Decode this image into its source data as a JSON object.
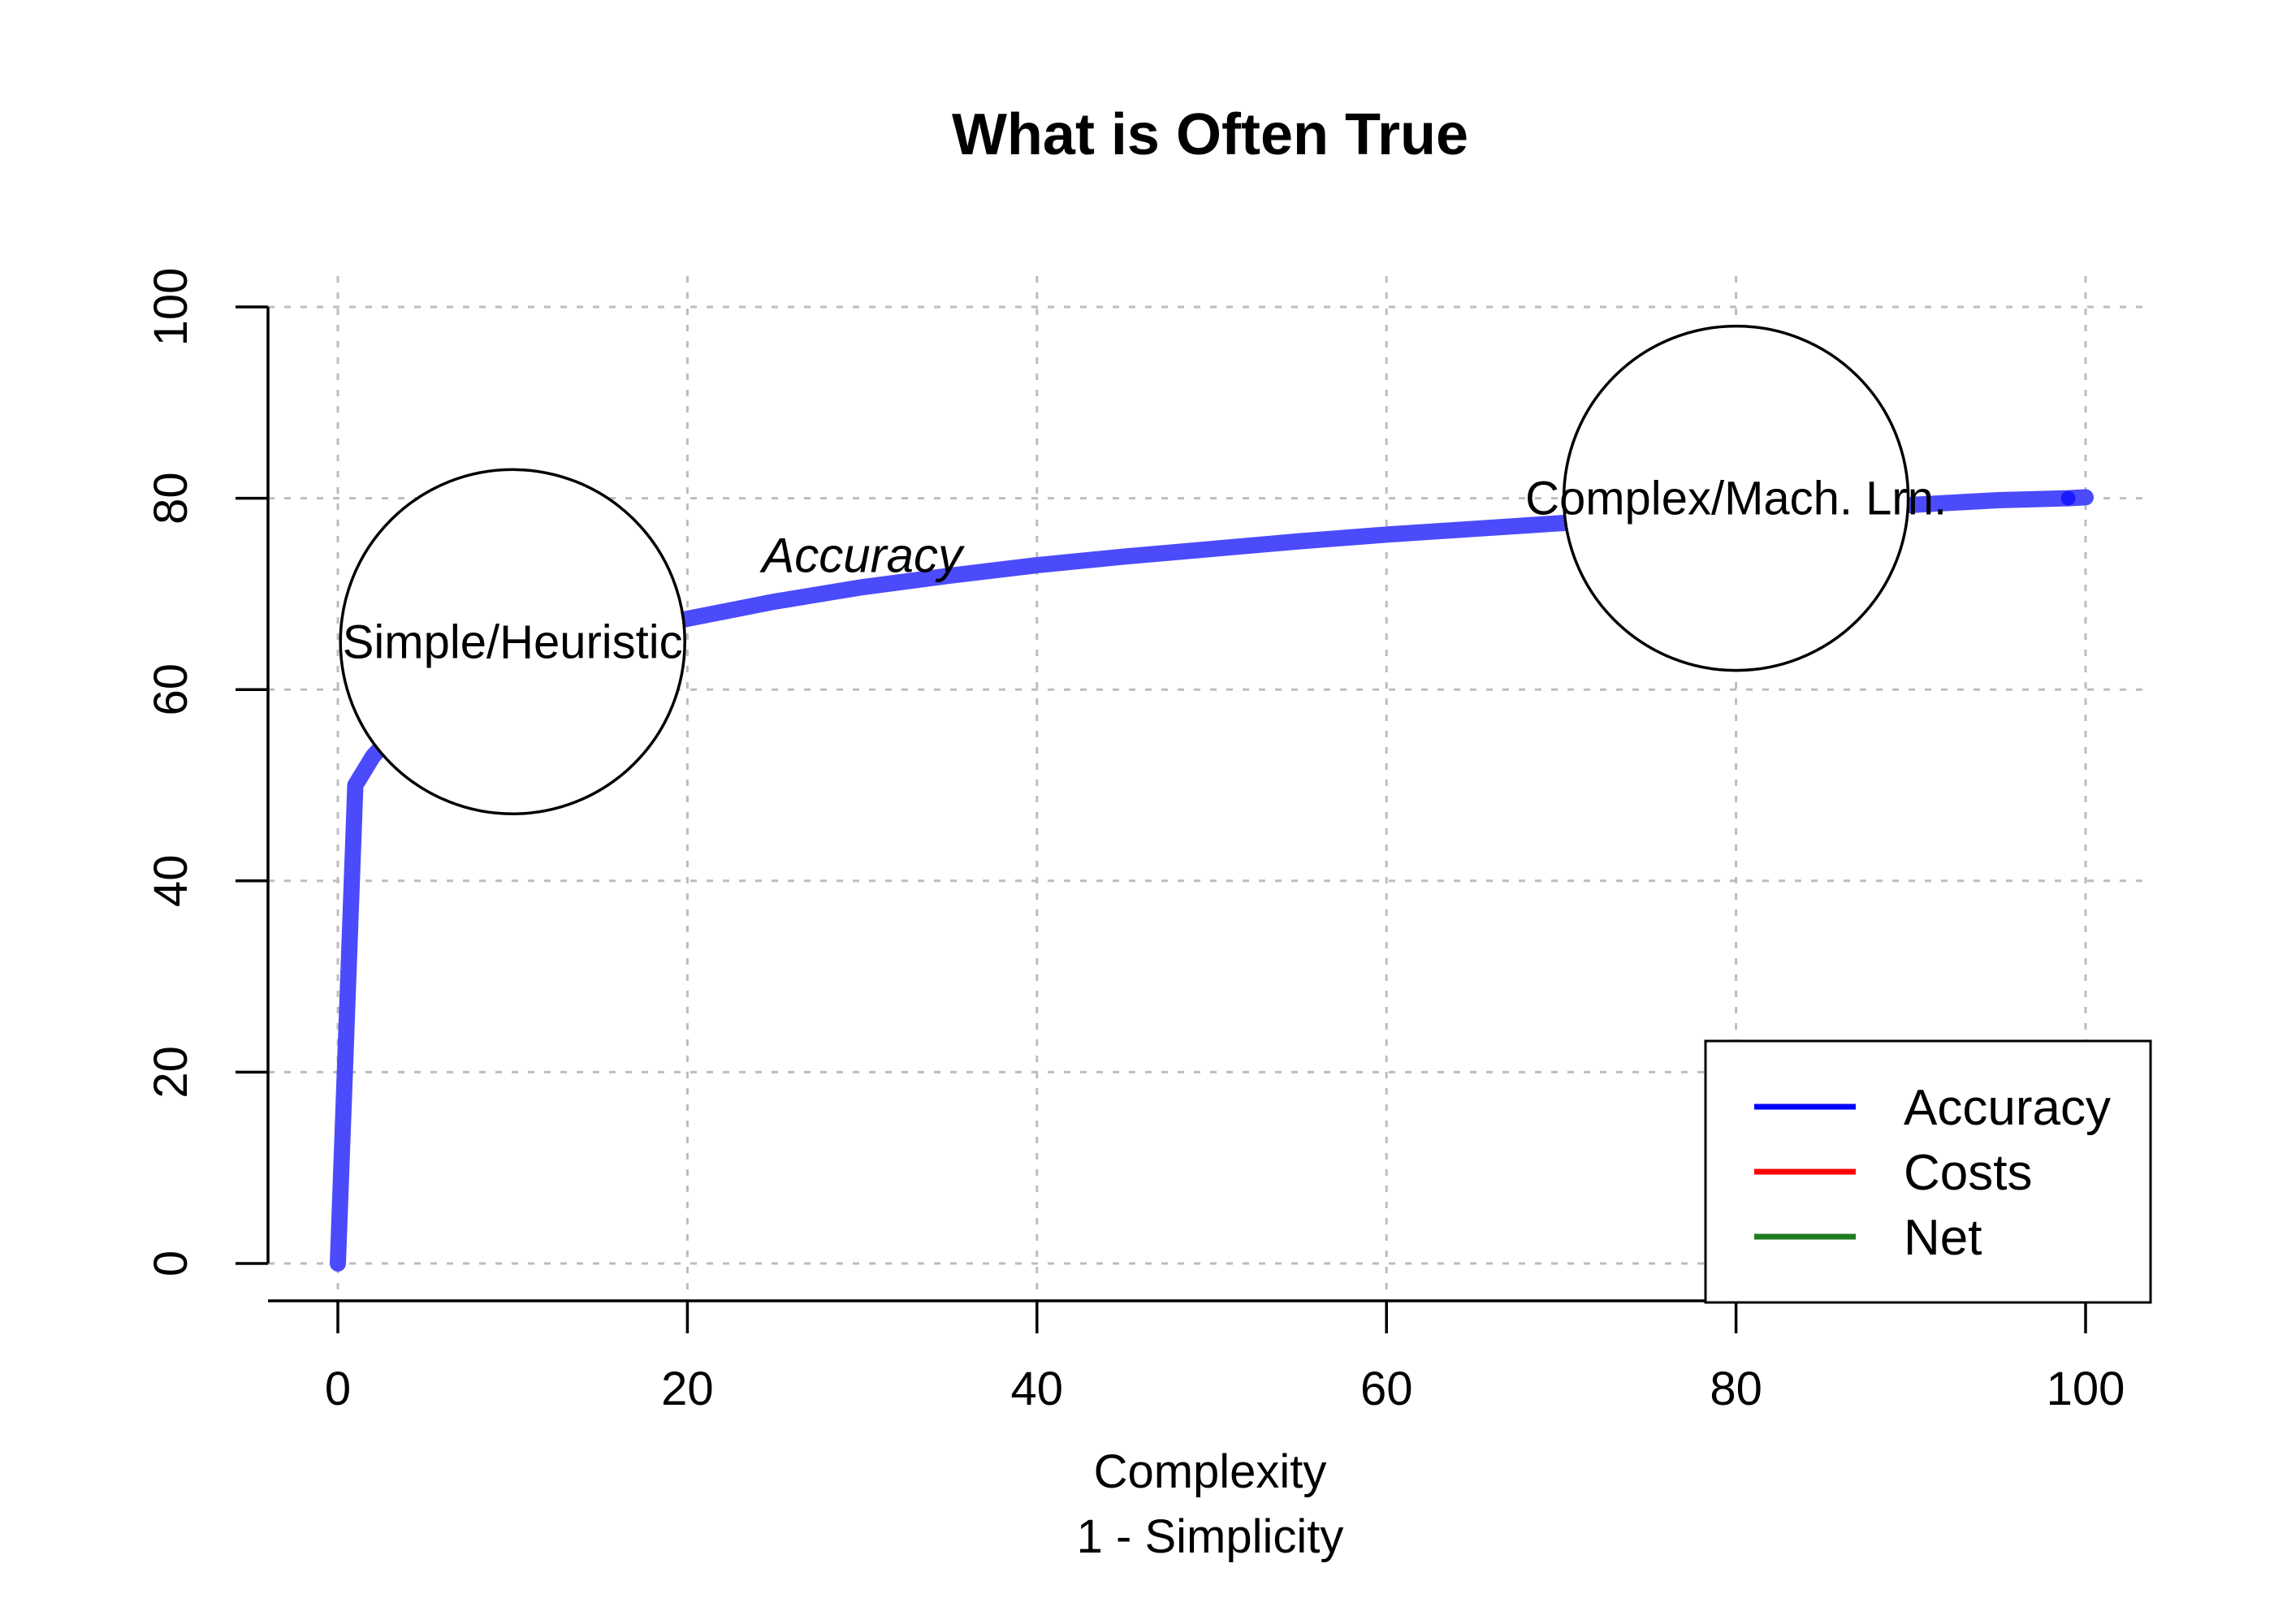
{
  "chart_data": {
    "type": "line",
    "title": "What is Often True",
    "xlabel": "Complexity",
    "xlabel2": "1 - Simplicity",
    "ylabel": "",
    "xlim": [
      0,
      100
    ],
    "ylim": [
      0,
      100
    ],
    "x_ticks": [
      0,
      20,
      40,
      60,
      80,
      100
    ],
    "y_ticks": [
      0,
      20,
      40,
      60,
      80,
      100
    ],
    "grid": true,
    "series": [
      {
        "name": "Accuracy",
        "color": "#4b4bfb",
        "x": [
          0,
          1,
          2,
          3,
          4,
          5,
          6,
          8,
          10,
          12,
          15,
          18,
          20,
          25,
          30,
          35,
          40,
          45,
          50,
          55,
          60,
          65,
          70,
          75,
          80,
          85,
          90,
          95,
          99,
          100
        ],
        "y": [
          0,
          50,
          53.0,
          55.0,
          56.5,
          57.8,
          58.9,
          60.8,
          62.3,
          63.5,
          65.2,
          66.6,
          67.4,
          69.2,
          70.7,
          71.9,
          73.0,
          73.9,
          74.7,
          75.5,
          76.2,
          76.8,
          77.4,
          77.9,
          78.4,
          78.9,
          79.3,
          79.8,
          80.0,
          80.1
        ]
      }
    ],
    "curve_label": {
      "text": "Accuracy",
      "x": 30,
      "y": 74
    },
    "bubbles": [
      {
        "label": "Simple/Heuristic",
        "x": 10,
        "y": 65
      },
      {
        "label": "Complex/Mach. Lrn.",
        "x": 80,
        "y": 80
      }
    ],
    "legend": {
      "position": "bottom-right",
      "entries": [
        {
          "label": "Accuracy",
          "color": "#0000ff"
        },
        {
          "label": "Costs",
          "color": "#ff0000"
        },
        {
          "label": "Net",
          "color": "#1e7a1e"
        }
      ]
    }
  }
}
